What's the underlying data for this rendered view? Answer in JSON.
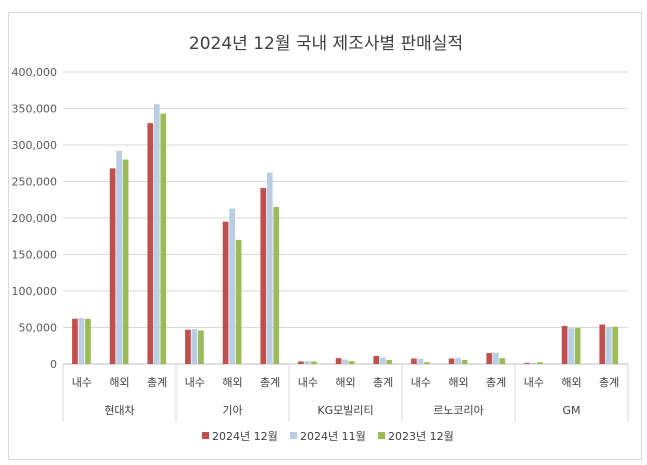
{
  "chart_data": {
    "type": "bar",
    "title": "2024년 12월 국내 제조사별 판매실적",
    "groups": [
      {
        "name": "현대차",
        "categories": [
          "내수",
          "해외",
          "총계"
        ]
      },
      {
        "name": "기아",
        "categories": [
          "내수",
          "해외",
          "총계"
        ]
      },
      {
        "name": "KG모빌리티",
        "categories": [
          "내수",
          "해외",
          "총계"
        ]
      },
      {
        "name": "르노코리아",
        "categories": [
          "내수",
          "해외",
          "총계"
        ]
      },
      {
        "name": "GM",
        "categories": [
          "내수",
          "해외",
          "총계"
        ]
      }
    ],
    "series": [
      {
        "name": "2024년 12월",
        "color": "#c0504d",
        "values": [
          62000,
          268000,
          330000,
          47000,
          195000,
          241000,
          3500,
          8000,
          11000,
          7500,
          7500,
          15000,
          1500,
          52000,
          54000
        ]
      },
      {
        "name": "2024년 11월",
        "color": "#b9cde5",
        "values": [
          63000,
          292000,
          356000,
          48000,
          213000,
          262000,
          4000,
          6000,
          9000,
          7000,
          8500,
          15500,
          1800,
          49000,
          51000
        ]
      },
      {
        "name": "2023년 12월",
        "color": "#9bbb59",
        "values": [
          62000,
          280000,
          343000,
          46000,
          170000,
          215000,
          3500,
          4000,
          5500,
          2500,
          5500,
          8000,
          2500,
          49500,
          51000
        ]
      }
    ],
    "ylim": [
      0,
      400000
    ],
    "yticks": [
      "0",
      "50,000",
      "100,000",
      "150,000",
      "200,000",
      "250,000",
      "300,000",
      "350,000",
      "400,000"
    ],
    "grid": true,
    "legend_position": "bottom"
  }
}
